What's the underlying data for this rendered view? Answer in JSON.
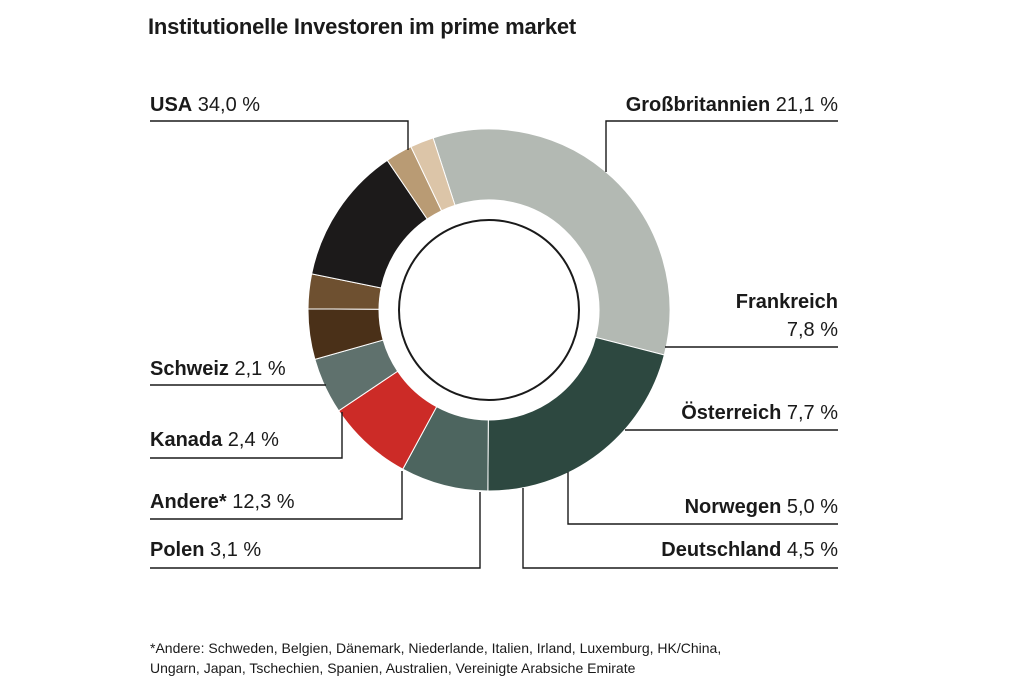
{
  "title": "Institutionelle Investoren im prime market",
  "chart_data": {
    "type": "pie",
    "variant": "donut",
    "title": "Institutionelle Investoren im prime market",
    "unit": "%",
    "slices": [
      {
        "name": "USA",
        "value": 34.0,
        "label": "34,0 %",
        "color": "#b3b9b3"
      },
      {
        "name": "Großbritannien",
        "value": 21.1,
        "label": "21,1 %",
        "color": "#2d4840"
      },
      {
        "name": "Frankreich",
        "value": 7.8,
        "label": "7,8 %",
        "color": "#4d655f"
      },
      {
        "name": "Österreich",
        "value": 7.7,
        "label": "7,7 %",
        "color": "#cc2b27"
      },
      {
        "name": "Norwegen",
        "value": 5.0,
        "label": "5,0 %",
        "color": "#5f716d"
      },
      {
        "name": "Deutschland",
        "value": 4.5,
        "label": "4,5 %",
        "color": "#4a3018"
      },
      {
        "name": "Polen",
        "value": 3.1,
        "label": "3,1 %",
        "color": "#6e5030"
      },
      {
        "name": "Andere*",
        "value": 12.3,
        "label": "12,3 %",
        "color": "#1c1a1a"
      },
      {
        "name": "Kanada",
        "value": 2.4,
        "label": "2,4 %",
        "color": "#b99b74"
      },
      {
        "name": "Schweiz",
        "value": 2.1,
        "label": "2,1 %",
        "color": "#dcc5a8"
      }
    ]
  },
  "footnote": {
    "line1": "*Andere: Schweden, Belgien, Dänemark, Niederlande, Italien, Irland, Luxemburg, HK/China,",
    "line2": "Ungarn, Japan, Tschechien, Spanien, Australien, Vereinigte Arabsiche Emirate"
  }
}
